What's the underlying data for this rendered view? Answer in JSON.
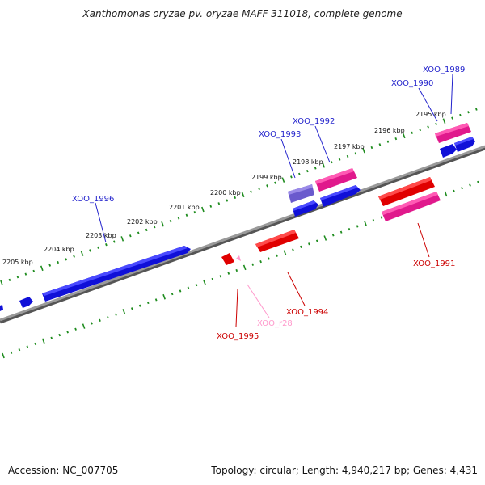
{
  "title": "Xanthomonas oryzae pv. oryzae MAFF 311018, complete genome",
  "accession_label": "Accession: NC_007705",
  "topology_label": "Topology: circular; Length: 4,940,217 bp; Genes: 4,431",
  "colors": {
    "backbone": "#808080",
    "scale": "#1e8c1e",
    "forward_gene": "#0000ee",
    "forward_label": "#2222cc",
    "reverse_gene": "#ee0000",
    "reverse_label": "#cc0000",
    "pseudo_gene": "#7a6ad0",
    "pink_gene": "#e0198c",
    "rna": "#ff99cc"
  },
  "kbp_ticks": [
    "2195 kbp",
    "2196 kbp",
    "2197 kbp",
    "2198 kbp",
    "2199 kbp",
    "2200 kbp",
    "2201 kbp",
    "2202 kbp",
    "2203 kbp",
    "2204 kbp",
    "2205 kbp"
  ],
  "gene_labels": [
    {
      "text": "XOO_1989",
      "color": "forward_label"
    },
    {
      "text": "XOO_1990",
      "color": "forward_label"
    },
    {
      "text": "XOO_1992",
      "color": "forward_label"
    },
    {
      "text": "XOO_1993",
      "color": "forward_label"
    },
    {
      "text": "XOO_1996",
      "color": "forward_label"
    },
    {
      "text": "XOO_1991",
      "color": "reverse_label"
    },
    {
      "text": "XOO_1994",
      "color": "reverse_label"
    },
    {
      "text": "XOO_1995",
      "color": "reverse_label"
    },
    {
      "text": "XOO_r28",
      "color": "rna"
    }
  ]
}
